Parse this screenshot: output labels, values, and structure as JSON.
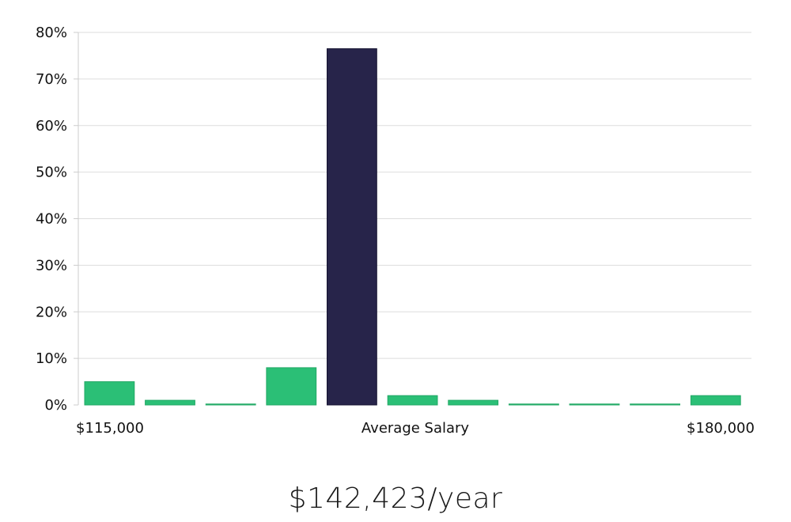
{
  "chart_data": {
    "type": "bar",
    "y_ticks": [
      "0%",
      "10%",
      "20%",
      "30%",
      "40%",
      "50%",
      "60%",
      "70%",
      "80%"
    ],
    "ylim": [
      0,
      80
    ],
    "grid": true,
    "x_labels": {
      "left": "$115,000",
      "center": "Average Salary",
      "right": "$180,000"
    },
    "values": [
      5,
      1,
      0.2,
      8,
      76.5,
      2,
      1,
      0.2,
      0.2,
      0.2,
      2
    ],
    "highlight_index": 4,
    "colors": {
      "bar": "#2bbf76",
      "highlight": "#27244a",
      "grid": "#dddddd",
      "axis": "#cccccc"
    }
  },
  "summary": {
    "salary": "$142,423/year"
  }
}
